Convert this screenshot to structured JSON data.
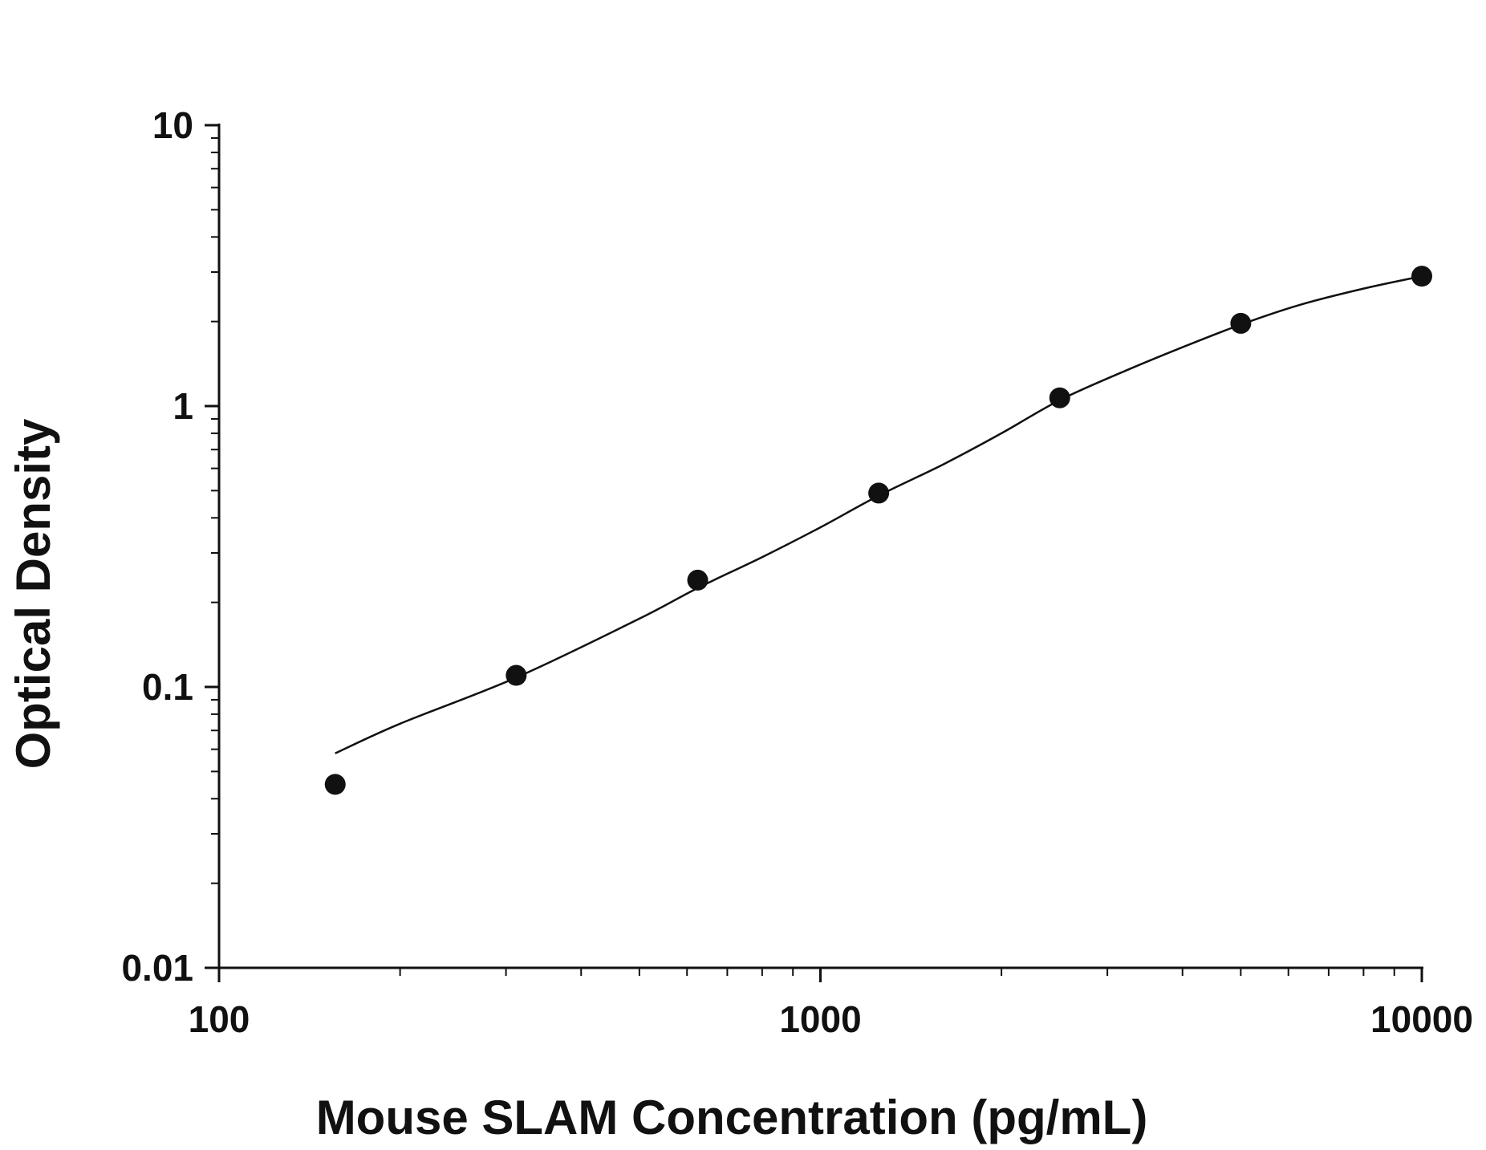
{
  "chart_data": {
    "type": "scatter",
    "title": "",
    "xlabel": "Mouse SLAM Concentration (pg/mL)",
    "ylabel": "Optical Density",
    "x_scale": "log",
    "y_scale": "log",
    "xlim": [
      100,
      10000
    ],
    "ylim": [
      0.01,
      10
    ],
    "x_ticks": [
      "100",
      "1000",
      "10000"
    ],
    "y_ticks": [
      "0.01",
      "0.1",
      "1",
      "10"
    ],
    "grid": false,
    "legend": "none",
    "series": [
      {
        "x": [
          156,
          312,
          625,
          1250,
          2500,
          5000,
          10000
        ],
        "y": [
          0.045,
          0.11,
          0.24,
          0.49,
          1.07,
          1.97,
          2.9
        ]
      }
    ],
    "fit_curve": {
      "x": [
        156,
        200,
        312,
        500,
        625,
        800,
        1000,
        1250,
        1600,
        2000,
        2500,
        3200,
        4000,
        5000,
        6300,
        8000,
        10000
      ],
      "y": [
        0.058,
        0.074,
        0.108,
        0.175,
        0.225,
        0.29,
        0.37,
        0.48,
        0.62,
        0.8,
        1.05,
        1.33,
        1.62,
        1.95,
        2.3,
        2.62,
        2.9
      ]
    },
    "colors": {
      "ink": "#111111",
      "background": "#ffffff"
    }
  }
}
